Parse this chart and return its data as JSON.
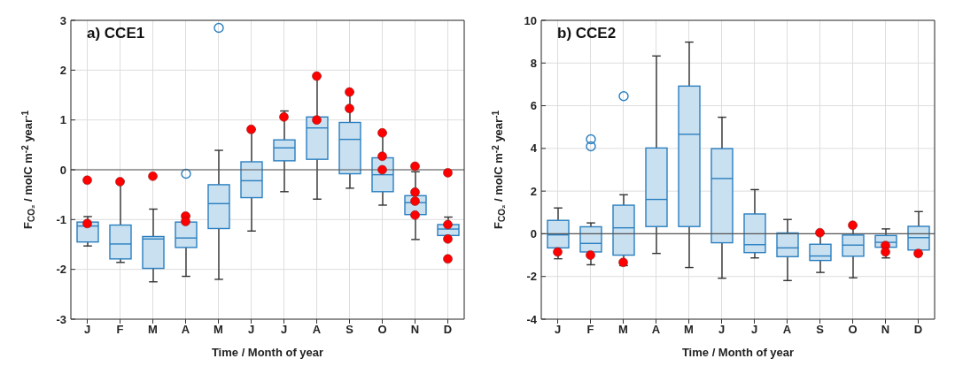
{
  "chart_data": [
    {
      "type": "box",
      "title": "a) CCE1",
      "xlabel": "Time / Month of year",
      "ylabel": "F$_{CO₂}$ / molC m$^{-2}$ year$^{-1}$",
      "categories": [
        "J",
        "F",
        "M",
        "A",
        "M",
        "J",
        "J",
        "A",
        "S",
        "O",
        "N",
        "D"
      ],
      "color": "#2a7fc0",
      "boxes": [
        {
          "low": -1.53,
          "q1": -1.45,
          "median": -1.13,
          "q3": -1.05,
          "high": -0.94
        },
        {
          "low": -1.86,
          "q1": -1.79,
          "median": -1.49,
          "q3": -1.11,
          "high": -0.23
        },
        {
          "low": -2.25,
          "q1": -1.98,
          "median": -1.39,
          "q3": -1.34,
          "high": -0.79
        },
        {
          "low": -2.14,
          "q1": -1.56,
          "median": -1.37,
          "q3": -1.05,
          "high": -0.93,
          "outliers": [
            -0.08
          ]
        },
        {
          "low": -2.2,
          "q1": -1.18,
          "median": -0.68,
          "q3": -0.3,
          "high": 0.39,
          "outliers": [
            2.85
          ]
        },
        {
          "low": -1.23,
          "q1": -0.56,
          "median": -0.22,
          "q3": 0.16,
          "high": 0.81
        },
        {
          "low": -0.44,
          "q1": 0.18,
          "median": 0.44,
          "q3": 0.6,
          "high": 1.18
        },
        {
          "low": -0.59,
          "q1": 0.21,
          "median": 0.84,
          "q3": 1.06,
          "high": 1.88
        },
        {
          "low": -0.37,
          "q1": -0.08,
          "median": 0.61,
          "q3": 0.95,
          "high": 1.56
        },
        {
          "low": -0.71,
          "q1": -0.44,
          "median": -0.1,
          "q3": 0.24,
          "high": 0.74
        },
        {
          "low": -1.4,
          "q1": -0.9,
          "median": -0.66,
          "q3": -0.52,
          "high": -0.04
        },
        {
          "low": -1.32,
          "q1": -1.32,
          "median": -1.19,
          "q3": -1.1,
          "high": -0.95
        }
      ],
      "series": [
        {
          "type": "scatter",
          "color": "#ff0000",
          "values": [
            -0.21,
            -0.24,
            -0.13,
            -0.93,
            null,
            0.81,
            1.06,
            1.88,
            1.56,
            0.74,
            0.07,
            -0.06
          ]
        },
        {
          "type": "scatter",
          "color": "#ff0000",
          "values": [
            -1.08,
            null,
            null,
            -1.04,
            null,
            null,
            null,
            1.0,
            1.23,
            0.27,
            -0.45,
            -1.1
          ]
        },
        {
          "type": "scatter",
          "color": "#ff0000",
          "values": [
            null,
            null,
            null,
            null,
            null,
            null,
            null,
            null,
            null,
            0,
            -0.63,
            -1.39
          ]
        },
        {
          "type": "scatter",
          "color": "#ff0000",
          "values": [
            null,
            null,
            null,
            null,
            null,
            null,
            null,
            null,
            null,
            null,
            -0.91,
            -1.79
          ]
        }
      ],
      "marker": "circle",
      "ylim": [
        -3,
        3
      ],
      "yticks": [
        -3,
        -2,
        -1,
        0,
        1,
        2,
        3
      ],
      "grid": true,
      "ref_lines": [
        {
          "axis": "y",
          "value": 0
        }
      ]
    },
    {
      "type": "box",
      "title": "b) CCE2",
      "xlabel": "Time / Month of year",
      "ylabel": "F$_{CO₂}$ / molC m$^{-2}$ year$^{-1}$",
      "categories": [
        "J",
        "F",
        "M",
        "A",
        "M",
        "J",
        "J",
        "A",
        "S",
        "O",
        "N",
        "D"
      ],
      "color": "#2a7fc0",
      "boxes": [
        {
          "low": -1.17,
          "q1": -0.66,
          "median": -0.05,
          "q3": 0.63,
          "high": 1.21
        },
        {
          "low": -1.45,
          "q1": -0.85,
          "median": -0.45,
          "q3": 0.33,
          "high": 0.51,
          "outliers": [
            4.43,
            4.1
          ]
        },
        {
          "low": -1.49,
          "q1": -1.0,
          "median": 0.28,
          "q3": 1.34,
          "high": 1.83,
          "outliers": [
            6.45
          ]
        },
        {
          "low": -0.92,
          "q1": 0.34,
          "median": 1.61,
          "q3": 4.02,
          "high": 8.33
        },
        {
          "low": -1.58,
          "q1": 0.34,
          "median": 4.66,
          "q3": 6.92,
          "high": 8.98
        },
        {
          "low": -2.08,
          "q1": -0.42,
          "median": 2.59,
          "q3": 3.99,
          "high": 5.46
        },
        {
          "low": -1.13,
          "q1": -0.88,
          "median": -0.51,
          "q3": 0.93,
          "high": 2.07
        },
        {
          "low": -2.19,
          "q1": -1.07,
          "median": -0.66,
          "q3": 0.04,
          "high": 0.67
        },
        {
          "low": -1.81,
          "q1": -1.25,
          "median": -1.04,
          "q3": -0.49,
          "high": 0.05
        },
        {
          "low": -2.06,
          "q1": -1.05,
          "median": -0.53,
          "q3": -0.06,
          "high": 0.4
        },
        {
          "low": -1.13,
          "q1": -0.63,
          "median": -0.4,
          "q3": -0.08,
          "high": 0.23
        },
        {
          "low": -0.92,
          "q1": -0.76,
          "median": -0.18,
          "q3": 0.35,
          "high": 1.04
        }
      ],
      "series": [
        {
          "type": "scatter",
          "color": "#ff0000",
          "values": [
            -0.85,
            -1.0,
            -1.34,
            null,
            null,
            null,
            null,
            null,
            0.05,
            0.4,
            -0.55,
            -0.92
          ]
        },
        {
          "type": "scatter",
          "color": "#ff0000",
          "values": [
            null,
            null,
            null,
            null,
            null,
            null,
            null,
            null,
            null,
            null,
            -0.85,
            null
          ]
        }
      ],
      "marker": "circle",
      "ylim": [
        -4,
        10
      ],
      "yticks": [
        -4,
        -2,
        0,
        2,
        4,
        6,
        8,
        10
      ],
      "grid": true,
      "ref_lines": [
        {
          "axis": "y",
          "value": 0
        }
      ]
    }
  ]
}
